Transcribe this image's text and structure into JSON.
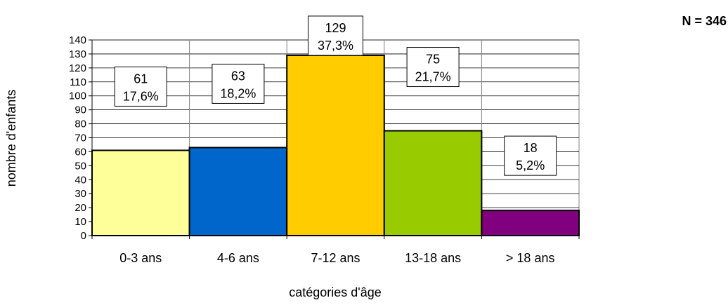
{
  "chart_data": {
    "type": "bar",
    "categories": [
      "0-3 ans",
      "4-6 ans",
      "7-12 ans",
      "13-18 ans",
      "> 18 ans"
    ],
    "values": [
      61,
      63,
      129,
      75,
      18
    ],
    "percent_labels": [
      "17,6%",
      "18,2%",
      "37,3%",
      "21,7%",
      "5,2%"
    ],
    "colors": [
      "#FFFF99",
      "#0066CC",
      "#FFCC00",
      "#99CC00",
      "#800080"
    ],
    "xlabel": "catégories d'âge",
    "ylabel": "nombre d'enfants",
    "ylim": [
      0,
      140
    ],
    "ytick_step": 10,
    "grid": true,
    "annotation": "N = 346"
  }
}
